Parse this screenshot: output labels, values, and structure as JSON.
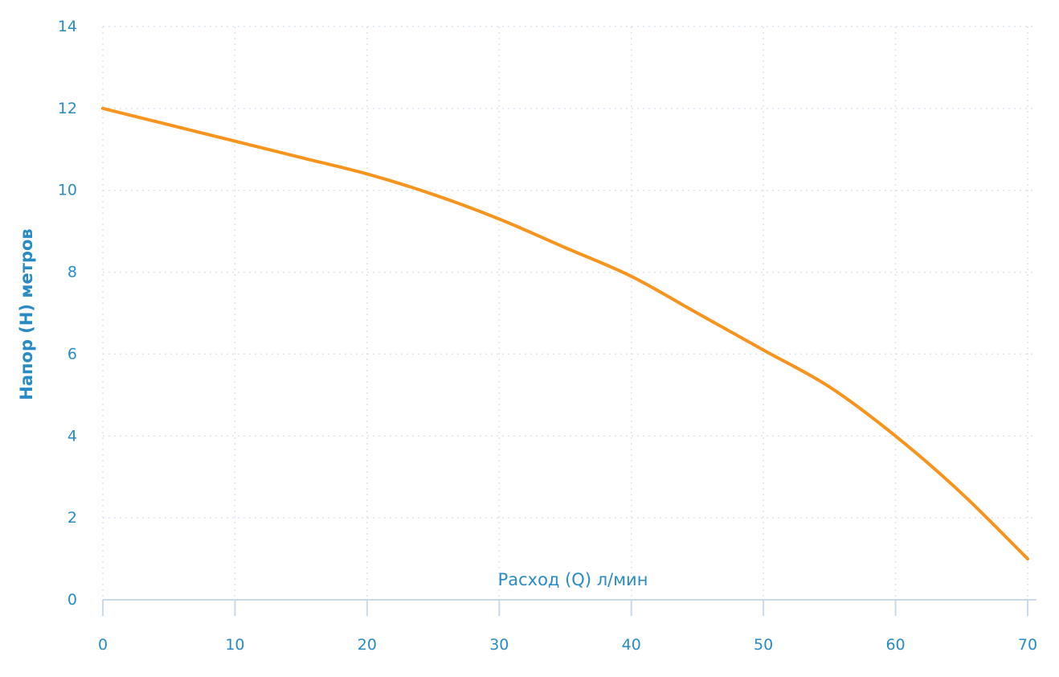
{
  "chart_data": {
    "type": "line",
    "title": "",
    "xlabel": "Расход (Q) л/мин",
    "ylabel": "Напор (H) метров",
    "xlim": [
      0,
      70
    ],
    "ylim": [
      0,
      14
    ],
    "x_ticks": [
      0,
      10,
      20,
      30,
      40,
      50,
      60,
      70
    ],
    "y_ticks": [
      0,
      2,
      4,
      6,
      8,
      10,
      12,
      14
    ],
    "grid": true,
    "legend": "none",
    "colors": {
      "line": "#f7941d",
      "text": "#2a8bc4",
      "grid": "#d9e4ef",
      "axis": "#c9d9ec"
    },
    "series": [
      {
        "x": [
          0,
          5,
          10,
          15,
          20,
          25,
          30,
          35,
          40,
          45,
          50,
          55,
          60,
          65,
          70
        ],
        "y": [
          12.0,
          11.6,
          11.2,
          10.8,
          10.4,
          9.9,
          9.3,
          8.6,
          7.9,
          7.0,
          6.1,
          5.2,
          4.0,
          2.6,
          1.0
        ]
      }
    ]
  }
}
